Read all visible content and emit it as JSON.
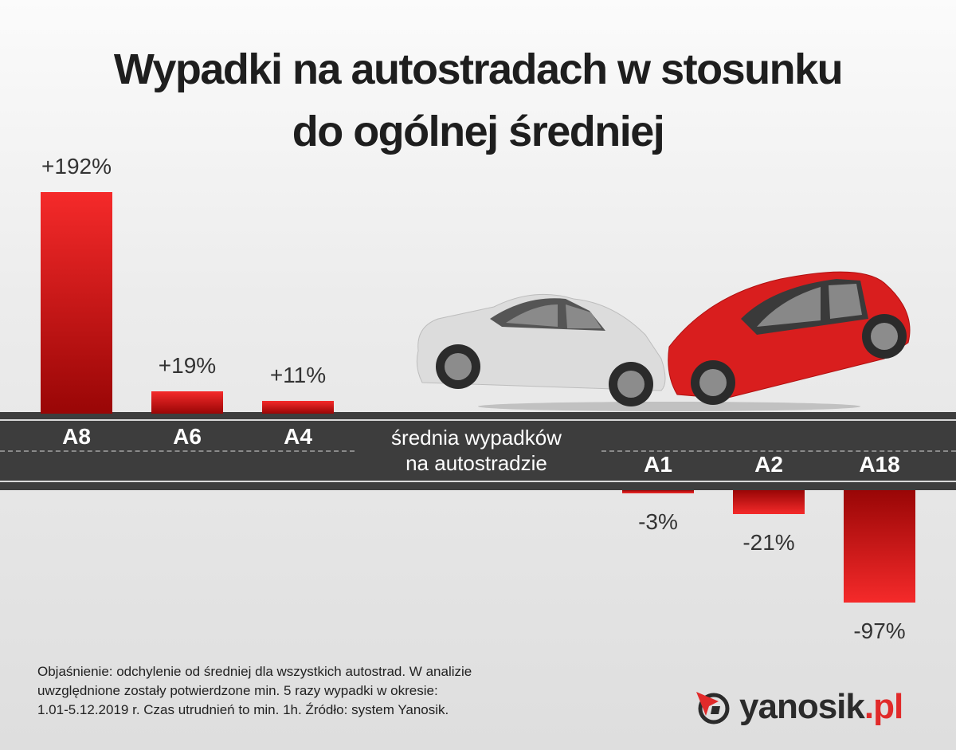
{
  "title_line1": "Wypadki na autostradach w stosunku",
  "title_line2": "do ogólnej średniej",
  "chart_data": {
    "type": "bar",
    "categories": [
      "A8",
      "A6",
      "A4",
      "A1",
      "A2",
      "A18"
    ],
    "values": [
      192,
      19,
      11,
      -3,
      -21,
      -97
    ],
    "labels": [
      "+192%",
      "+19%",
      "+11%",
      "-3%",
      "-21%",
      "-97%"
    ],
    "baseline_label_line1": "średnia wypadków",
    "baseline_label_line2": "na autostradzie",
    "unit": "%",
    "bar_color": "#c4161c",
    "grid": false
  },
  "footnote": {
    "line1": "Objaśnienie: odchylenie od średniej dla wszystkich autostrad. W analizie",
    "line2": "uwzględnione zostały potwierdzone min. 5 razy wypadki w okresie:",
    "line3": "1.01-5.12.2019 r. Czas utrudnień to min. 1h. Źródło: system Yanosik."
  },
  "logo": {
    "name": "yanosik",
    "suffix": ".pl",
    "icon": "compass-arrow-icon"
  }
}
